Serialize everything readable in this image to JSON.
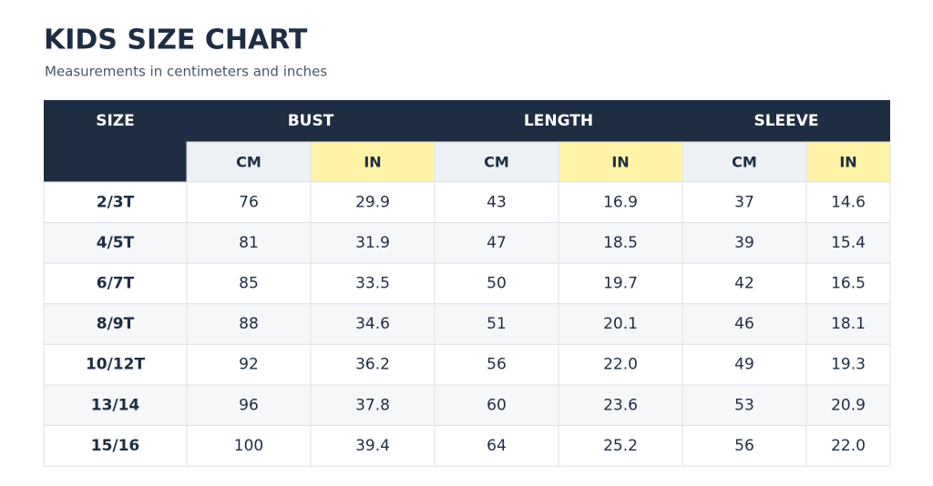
{
  "header": {
    "title": "KIDS SIZE CHART",
    "subtitle": "Measurements in centimeters and inches"
  },
  "table": {
    "groups": [
      "SIZE",
      "BUST",
      "LENGTH",
      "SLEEVE"
    ],
    "units": [
      "CM",
      "IN",
      "CM",
      "IN",
      "CM",
      "IN"
    ],
    "rows": [
      [
        "2/3T",
        "76",
        "29.9",
        "43",
        "16.9",
        "37",
        "14.6"
      ],
      [
        "4/5T",
        "81",
        "31.9",
        "47",
        "18.5",
        "39",
        "15.4"
      ],
      [
        "6/7T",
        "85",
        "33.5",
        "50",
        "19.7",
        "42",
        "16.5"
      ],
      [
        "8/9T",
        "88",
        "34.6",
        "51",
        "20.1",
        "46",
        "18.1"
      ],
      [
        "10/12T",
        "92",
        "36.2",
        "56",
        "22.0",
        "49",
        "19.3"
      ],
      [
        "13/14",
        "96",
        "37.8",
        "60",
        "23.6",
        "53",
        "20.9"
      ],
      [
        "15/16",
        "100",
        "39.4",
        "64",
        "25.2",
        "56",
        "22.0"
      ]
    ]
  }
}
